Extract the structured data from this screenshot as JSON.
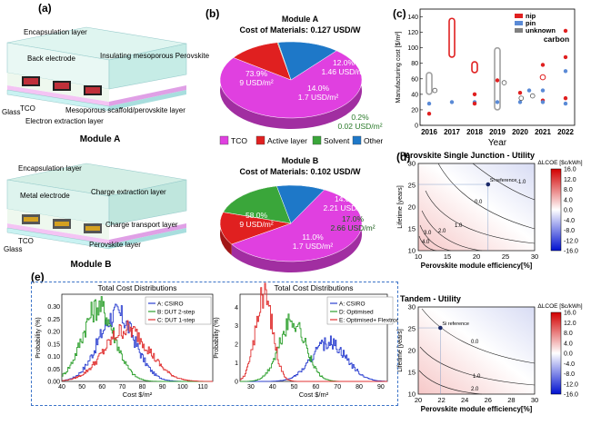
{
  "panel_labels": {
    "a": "(a)",
    "b": "(b)",
    "c": "(c)",
    "d": "(d)",
    "e": "(e)"
  },
  "panel_a": {
    "module_a_label": "Module A",
    "module_b_label": "Module B",
    "module_a_layers": [
      "Encapsulation layer",
      "Back electrode",
      "Insulating mesoporous Perovskite layer",
      "TCO",
      "Glass",
      "Mesoporous scaffold/perovskite layer",
      "Electron extraction layer"
    ],
    "module_b_layers": [
      "Encapsulation layer",
      "Metal electrode",
      "Charge extraction layer",
      "Charge transport layer",
      "Glass",
      "TCO",
      "Perovskite layer"
    ],
    "colors": {
      "glass": "#c9f2f2",
      "tco": "#f4c4f4",
      "encap": "#d4f2ee"
    }
  },
  "panel_b": {
    "module_a_title": "Module A",
    "module_a_cost": "Cost of Materials: 0.127 USD/W",
    "module_b_title": "Module B",
    "module_b_cost": "Cost of Materials: 0.102 USD/W",
    "legend": [
      {
        "name": "TCO",
        "color": "#e040e0"
      },
      {
        "name": "Active layer",
        "color": "#e02020"
      },
      {
        "name": "Solvent",
        "color": "#3aa63a"
      },
      {
        "name": "Other",
        "color": "#1e78c8"
      }
    ]
  },
  "chart_data": [
    {
      "type": "pie",
      "title": "Module A",
      "labels": [
        "TCO",
        "Active layer",
        "Solvent",
        "Other"
      ],
      "values": [
        73.9,
        12.0,
        0.2,
        14.0
      ],
      "value_labels": [
        "73.9%",
        "12.0%",
        "0.2%",
        "14.0%"
      ],
      "cost_labels": [
        "9 USD/m²",
        "1.46 USD/m²",
        "0.02 USD/m²",
        "1.7 USD/m²"
      ]
    },
    {
      "type": "pie",
      "title": "Module B",
      "labels": [
        "TCO",
        "Active layer",
        "Solvent",
        "Other"
      ],
      "values": [
        58.0,
        14.0,
        17.0,
        11.0
      ],
      "value_labels": [
        "58.0%",
        "14.0%",
        "17.0%",
        "11.0%"
      ],
      "cost_labels": [
        "9 USD/m²",
        "2.21 USD/m²",
        "2.66 USD/m²",
        "1.7 USD/m²"
      ]
    },
    {
      "type": "scatter",
      "ylabel": "Manufacturing cost [$/m²]",
      "xlabel": "Year",
      "x_ticks": [
        "2016",
        "2017",
        "2018",
        "2019",
        "2020",
        "2021",
        "2022"
      ],
      "y_ticks": [
        "0",
        "20",
        "40",
        "60",
        "80",
        "100",
        "120",
        "140"
      ],
      "ylim": [
        0,
        150
      ],
      "legend": [
        {
          "name": "nip",
          "color": "#e02020"
        },
        {
          "name": "pin",
          "color": "#5a8ad6"
        },
        {
          "name": "unknown",
          "color": "#808080"
        }
      ],
      "annotation": "carbon",
      "ranges": [
        {
          "x": 2016,
          "y0": 40,
          "y1": 68,
          "color": "#a0a0a0"
        },
        {
          "x": 2017,
          "y0": 88,
          "y1": 138,
          "color": "#e02020"
        },
        {
          "x": 2018,
          "y0": 68,
          "y1": 82,
          "color": "#e02020"
        },
        {
          "x": 2019,
          "y0": 20,
          "y1": 100,
          "color": "#a0a0a0"
        }
      ],
      "points": [
        {
          "x": 2016,
          "y": 15,
          "s": "nip"
        },
        {
          "x": 2016,
          "y": 28,
          "s": "pin"
        },
        {
          "x": 2016.25,
          "y": 45,
          "s": "unknown"
        },
        {
          "x": 2017,
          "y": 30,
          "s": "pin"
        },
        {
          "x": 2018,
          "y": 40,
          "s": "nip"
        },
        {
          "x": 2018,
          "y": 30,
          "s": "pin"
        },
        {
          "x": 2018,
          "y": 28,
          "s": "nip"
        },
        {
          "x": 2019,
          "y": 58,
          "s": "nip"
        },
        {
          "x": 2019,
          "y": 30,
          "s": "pin"
        },
        {
          "x": 2019.3,
          "y": 55,
          "s": "unknown"
        },
        {
          "x": 2020,
          "y": 42,
          "s": "nip"
        },
        {
          "x": 2020,
          "y": 30,
          "s": "pin"
        },
        {
          "x": 2020.05,
          "y": 35,
          "s": "unknown"
        },
        {
          "x": 2020.4,
          "y": 45,
          "s": "pin"
        },
        {
          "x": 2020.55,
          "y": 38,
          "s": "unknown"
        },
        {
          "x": 2021,
          "y": 78,
          "s": "nip"
        },
        {
          "x": 2021,
          "y": 45,
          "s": "pin"
        },
        {
          "x": 2021,
          "y": 32,
          "s": "nip"
        },
        {
          "x": 2021,
          "y": 30,
          "s": "pin"
        },
        {
          "x": 2022,
          "y": 122,
          "s": "nip"
        },
        {
          "x": 2022,
          "y": 88,
          "s": "nip"
        },
        {
          "x": 2022,
          "y": 70,
          "s": "pin"
        },
        {
          "x": 2022,
          "y": 35,
          "s": "nip"
        },
        {
          "x": 2022,
          "y": 28,
          "s": "pin"
        }
      ]
    },
    {
      "type": "heatmap",
      "title": "Perovskite Single Junction - Utility",
      "xlabel": "Perovskite module efficiency[%]",
      "ylabel": "Lifetime [years]",
      "colorbar_label": "ΔLCOE [$c/kWh]",
      "x_ticks": [
        "10",
        "15",
        "20",
        "25",
        "30"
      ],
      "y_ticks": [
        "10",
        "15",
        "20",
        "25",
        "30"
      ],
      "xlim": [
        10,
        30
      ],
      "ylim": [
        10,
        30
      ],
      "colorbar_ticks": [
        "16.0",
        "12.0",
        "8.0",
        "4.0",
        "0.0",
        "-4.0",
        "-8.0",
        "-12.0",
        "-16.0"
      ],
      "contour_labels": [
        "-1.0",
        "0.0",
        "1.0",
        "2.0",
        "3.0",
        "4.0"
      ],
      "reference_label": "Si reference",
      "reference": {
        "x": 22,
        "y": 25
      }
    },
    {
      "type": "heatmap",
      "title": "Tandem - Utility",
      "xlabel": "Perovskite module efficiency[%]",
      "ylabel": "Lifetime [years]",
      "colorbar_label": "ΔLCOE [$c/kWh]",
      "x_ticks": [
        "20",
        "22",
        "24",
        "26",
        "28",
        "30"
      ],
      "y_ticks": [
        "10",
        "15",
        "20",
        "25",
        "30"
      ],
      "xlim": [
        20,
        30
      ],
      "ylim": [
        10,
        30
      ],
      "colorbar_ticks": [
        "16.0",
        "12.0",
        "8.0",
        "4.0",
        "0.0",
        "-4.0",
        "-8.0",
        "-12.0",
        "-16.0"
      ],
      "contour_labels": [
        "0.0",
        "1.0",
        "2.0"
      ],
      "reference_label": "Si reference",
      "reference": {
        "x": 22,
        "y": 25
      }
    },
    {
      "type": "line",
      "title": "Total Cost Distributions",
      "xlabel": "Cost $/m²",
      "ylabel": "Probability (%)",
      "x_ticks": [
        "40",
        "50",
        "60",
        "70",
        "80",
        "90",
        "100",
        "110"
      ],
      "y_ticks": [
        "0.00",
        "0.05",
        "0.10",
        "0.15",
        "0.20",
        "0.25",
        "0.30"
      ],
      "xlim": [
        40,
        115
      ],
      "ylim": [
        0,
        0.35
      ],
      "series": [
        {
          "name": "A: CSIRO",
          "color": "#2b3fd0",
          "mean": 67,
          "sd": 9,
          "peak": 0.27
        },
        {
          "name": "B: DUT 2-step",
          "color": "#2ea02e",
          "mean": 58,
          "sd": 8,
          "peak": 0.3
        },
        {
          "name": "C: DUT 1-step",
          "color": "#e03030",
          "mean": 72,
          "sd": 11,
          "peak": 0.21
        }
      ]
    },
    {
      "type": "line",
      "title": "Total Cost Distributions",
      "xlabel": "Cost $/m²",
      "ylabel": "Probability (%)",
      "x_ticks": [
        "30",
        "40",
        "50",
        "60",
        "70",
        "80",
        "90"
      ],
      "y_ticks": [
        "0",
        "1",
        "2",
        "3",
        "4"
      ],
      "xlim": [
        25,
        93
      ],
      "ylim": [
        0,
        4.7
      ],
      "series": [
        {
          "name": "A: CSIRO",
          "color": "#2b3fd0",
          "mean": 66,
          "sd": 8,
          "peak": 2.1
        },
        {
          "name": "D: Optimised",
          "color": "#2ea02e",
          "mean": 49,
          "sd": 6,
          "peak": 3.3
        },
        {
          "name": "E: Optimised+ Flextrode",
          "color": "#e03030",
          "mean": 36,
          "sd": 4,
          "peak": 4.6
        }
      ]
    }
  ]
}
